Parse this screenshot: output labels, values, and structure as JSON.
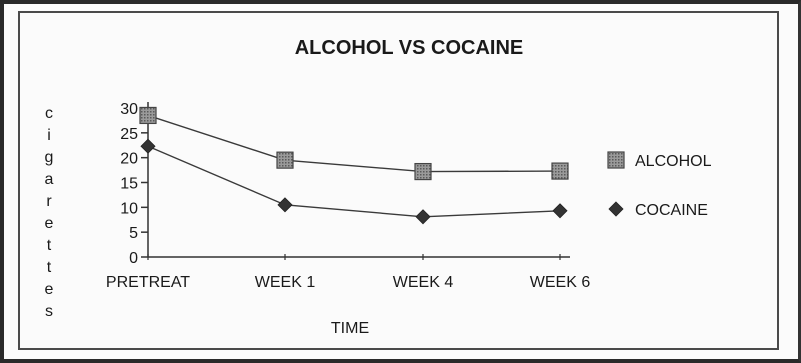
{
  "chart_data": {
    "type": "line",
    "title": "ALCOHOL VS COCAINE",
    "xlabel": "TIME",
    "ylabel": "cigarettes",
    "categories": [
      "PRETREAT",
      "WEEK 1",
      "WEEK 4",
      "WEEK 6"
    ],
    "ylim": [
      0,
      30
    ],
    "yticks": [
      "0",
      "5",
      "10",
      "15",
      "20",
      "25",
      "30"
    ],
    "grid": false,
    "legend_position": "right",
    "series": [
      {
        "name": "ALCOHOL",
        "marker": "square",
        "color": "#555555",
        "values": [
          28.5,
          19.5,
          17.2,
          17.3
        ]
      },
      {
        "name": "COCAINE",
        "marker": "diamond",
        "color": "#333333",
        "values": [
          22.3,
          10.5,
          8.1,
          9.3
        ]
      }
    ]
  }
}
